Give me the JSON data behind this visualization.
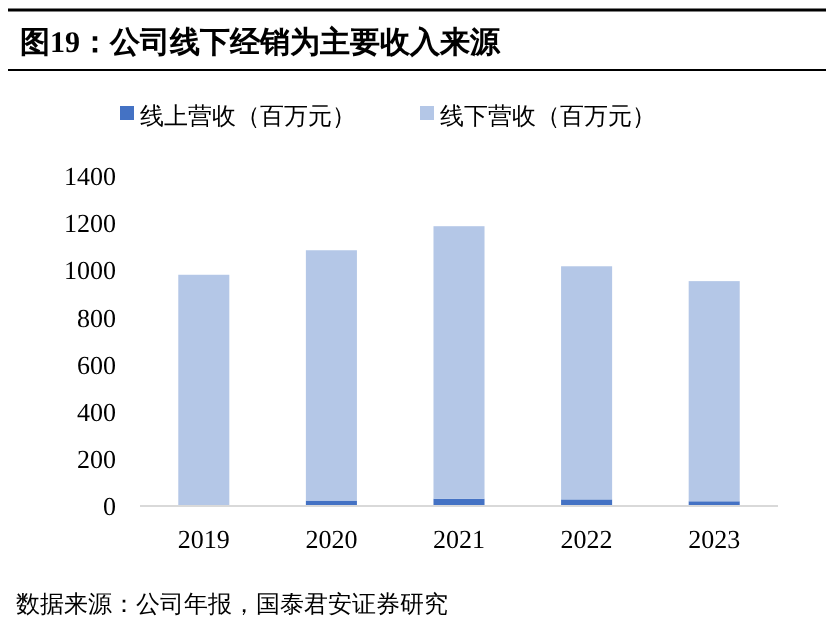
{
  "chart_data": {
    "type": "bar",
    "title": "图19：公司线下经销为主要收入来源",
    "categories": [
      "2019",
      "2020",
      "2021",
      "2022",
      "2023"
    ],
    "stacked": true,
    "series": [
      {
        "name": "线上营收（百万元）",
        "color": "#4472c4",
        "values": [
          null,
          23,
          31,
          28,
          20
        ]
      },
      {
        "name": "线下营收（百万元）",
        "color": "#b4c7e7",
        "values": [
          981,
          1062,
          1156,
          989,
          934
        ]
      }
    ],
    "ylim": [
      0,
      1400
    ],
    "yticks": [
      0,
      200,
      400,
      600,
      800,
      1000,
      1200,
      1400
    ],
    "grid": false,
    "legend": "top",
    "annotations": [
      "数据来源：公司年报，国泰君安证券研究"
    ]
  }
}
